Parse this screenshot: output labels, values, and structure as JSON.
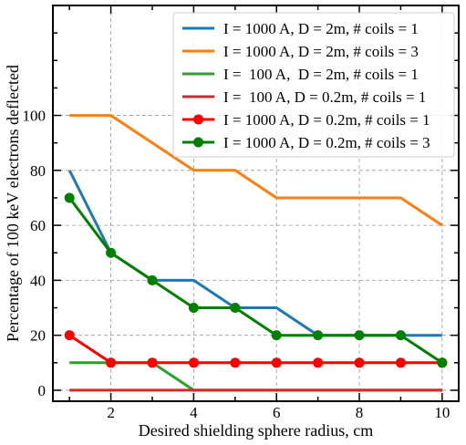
{
  "chart_data": {
    "type": "line",
    "title": "",
    "xlabel": "Desired shielding sphere radius, cm",
    "ylabel": "Percentage of 100 keV electrons deflected",
    "xlim": [
      0.6,
      10.4
    ],
    "ylim": [
      -4,
      140
    ],
    "xticks": [
      2,
      4,
      6,
      8,
      10
    ],
    "yticks": [
      0,
      20,
      40,
      60,
      80,
      100
    ],
    "grid": true,
    "legend_position": "top-right",
    "x": [
      1,
      2,
      3,
      4,
      5,
      6,
      7,
      8,
      9,
      10
    ],
    "series": [
      {
        "name": "I = 1000 A, D = 2m, # coils = 1",
        "color": "#1f77b4",
        "marker": "none",
        "values": [
          80,
          50,
          40,
          40,
          30,
          30,
          20,
          20,
          20,
          20
        ]
      },
      {
        "name": "I = 1000 A, D = 2m, # coils = 3",
        "color": "#ff7f0e",
        "marker": "none",
        "values": [
          100,
          100,
          90,
          80,
          80,
          70,
          70,
          70,
          70,
          60
        ]
      },
      {
        "name": "I =  100 A,  D = 2m, # coils = 1",
        "color": "#2ca02c",
        "marker": "none",
        "values": [
          10,
          10,
          10,
          0,
          0,
          0,
          0,
          0,
          0,
          0
        ]
      },
      {
        "name": "I =  100 A, D = 0.2m, # coils = 1",
        "color": "#d62728",
        "marker": "none",
        "values": [
          0,
          0,
          0,
          0,
          0,
          0,
          0,
          0,
          0,
          0
        ]
      },
      {
        "name": "I = 1000 A, D = 0.2m, # coils = 1",
        "color": "#ff0000",
        "marker": "circle",
        "values": [
          20,
          10,
          10,
          10,
          10,
          10,
          10,
          10,
          10,
          10
        ]
      },
      {
        "name": "I = 1000 A, D = 0.2m, # coils = 3",
        "color": "#008000",
        "marker": "circle",
        "values": [
          70,
          50,
          40,
          30,
          30,
          20,
          20,
          20,
          20,
          10
        ]
      }
    ]
  }
}
